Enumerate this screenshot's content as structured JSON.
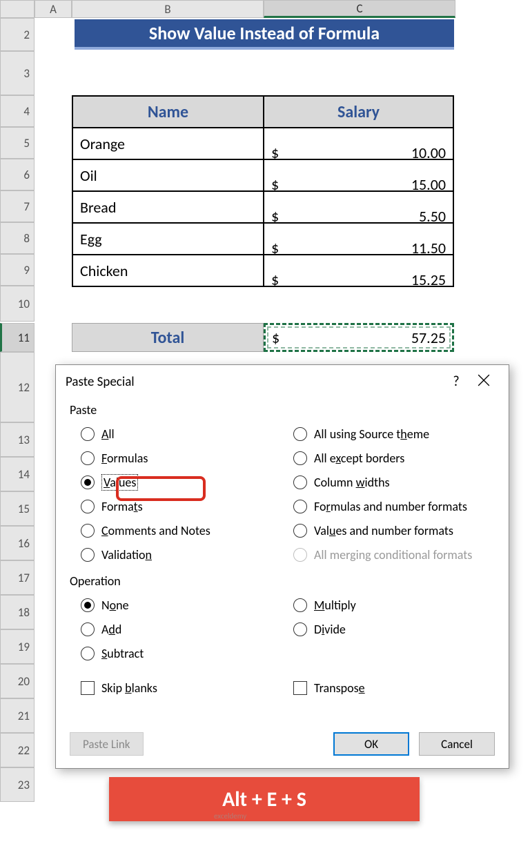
{
  "columns": [
    "A",
    "B",
    "C"
  ],
  "rows": [
    "2",
    "3",
    "4",
    "5",
    "6",
    "7",
    "8",
    "9",
    "10",
    "11",
    "12",
    "13",
    "14",
    "15",
    "16",
    "17",
    "18",
    "19",
    "20",
    "21",
    "22",
    "23"
  ],
  "title": "Show Value Instead of Formula",
  "table": {
    "headers": {
      "name": "Name",
      "salary": "Salary"
    },
    "rows": [
      {
        "name": "Orange",
        "sym": "$",
        "val": "10.00"
      },
      {
        "name": "Oil",
        "sym": "$",
        "val": "15.00"
      },
      {
        "name": "Bread",
        "sym": "$",
        "val": "5.50"
      },
      {
        "name": "Egg",
        "sym": "$",
        "val": "11.50"
      },
      {
        "name": "Chicken",
        "sym": "$",
        "val": "15.25"
      }
    ]
  },
  "total": {
    "label": "Total",
    "sym": "$",
    "val": "57.25"
  },
  "dialog": {
    "title": "Paste Special",
    "help": "?",
    "paste_label": "Paste",
    "operation_label": "Operation",
    "paste_left": [
      {
        "label_pre": "",
        "u": "A",
        "label_post": "ll",
        "sel": false
      },
      {
        "label_pre": "",
        "u": "F",
        "label_post": "ormulas",
        "sel": false
      },
      {
        "label_pre": "",
        "u": "V",
        "label_post": "alues",
        "sel": true,
        "dotted": true
      },
      {
        "label_pre": "Forma",
        "u": "t",
        "label_post": "s",
        "sel": false
      },
      {
        "label_pre": "",
        "u": "C",
        "label_post": "omments and Notes",
        "sel": false
      },
      {
        "label_pre": "Validatio",
        "u": "n",
        "label_post": "",
        "sel": false
      }
    ],
    "paste_right": [
      {
        "label_pre": "All using Source t",
        "u": "h",
        "label_post": "eme",
        "sel": false
      },
      {
        "label_pre": "All e",
        "u": "x",
        "label_post": "cept borders",
        "sel": false
      },
      {
        "label_pre": "Column ",
        "u": "w",
        "label_post": "idths",
        "sel": false
      },
      {
        "label_pre": "Fo",
        "u": "r",
        "label_post": "mulas and number formats",
        "sel": false
      },
      {
        "label_pre": "Val",
        "u": "u",
        "label_post": "es and number formats",
        "sel": false
      },
      {
        "label_pre": "All merging conditional formats",
        "u": "",
        "label_post": "",
        "sel": false,
        "disabled": true
      }
    ],
    "op_left": [
      {
        "label_pre": "N",
        "u": "o",
        "label_post": "ne",
        "sel": true
      },
      {
        "label_pre": "A",
        "u": "d",
        "label_post": "d",
        "sel": false
      },
      {
        "label_pre": "",
        "u": "S",
        "label_post": "ubtract",
        "sel": false
      }
    ],
    "op_right": [
      {
        "label_pre": "",
        "u": "M",
        "label_post": "ultiply",
        "sel": false
      },
      {
        "label_pre": "D",
        "u": "i",
        "label_post": "vide",
        "sel": false
      }
    ],
    "skip_blanks": {
      "pre": "Skip ",
      "u": "b",
      "post": "lanks"
    },
    "transpose": {
      "pre": "Transpos",
      "u": "e",
      "post": ""
    },
    "paste_link": "Paste Link",
    "ok": "OK",
    "cancel": "Cancel"
  },
  "kbd": "Alt + E + S",
  "watermark": "exceldemy"
}
